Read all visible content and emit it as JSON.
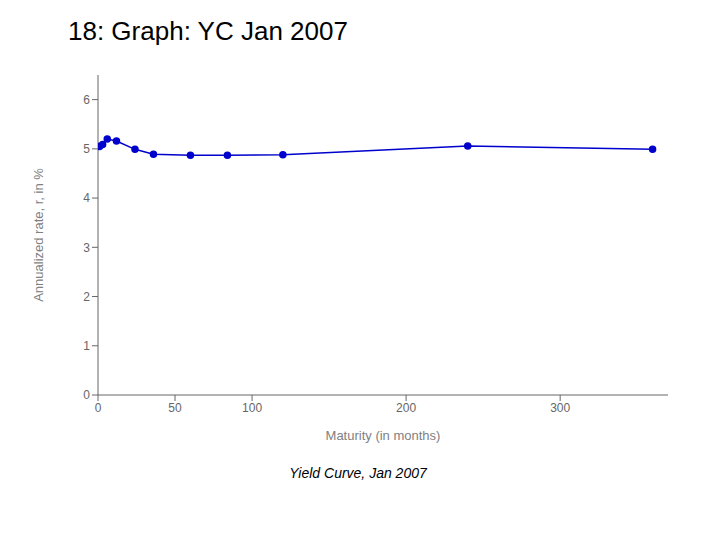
{
  "chart_data": {
    "type": "line",
    "title": "18: Graph: YC Jan 2007",
    "subtitle": "Yield Curve, Jan 2007",
    "xlabel": "Maturity (in months)",
    "ylabel": "Annualized rate, r, in %",
    "x": [
      1,
      3,
      6,
      12,
      24,
      36,
      60,
      84,
      120,
      240,
      360
    ],
    "values": [
      5.05,
      5.09,
      5.2,
      5.16,
      4.99,
      4.89,
      4.87,
      4.87,
      4.88,
      5.06,
      4.99
    ],
    "color": "#0000CC",
    "marker": "circle",
    "xlim": [
      0,
      370
    ],
    "ylim": [
      0,
      6.5
    ],
    "xticks": [
      0,
      50,
      100,
      200,
      300
    ],
    "yticks": [
      0,
      1,
      2,
      3,
      4,
      5,
      6
    ],
    "grid": false
  }
}
